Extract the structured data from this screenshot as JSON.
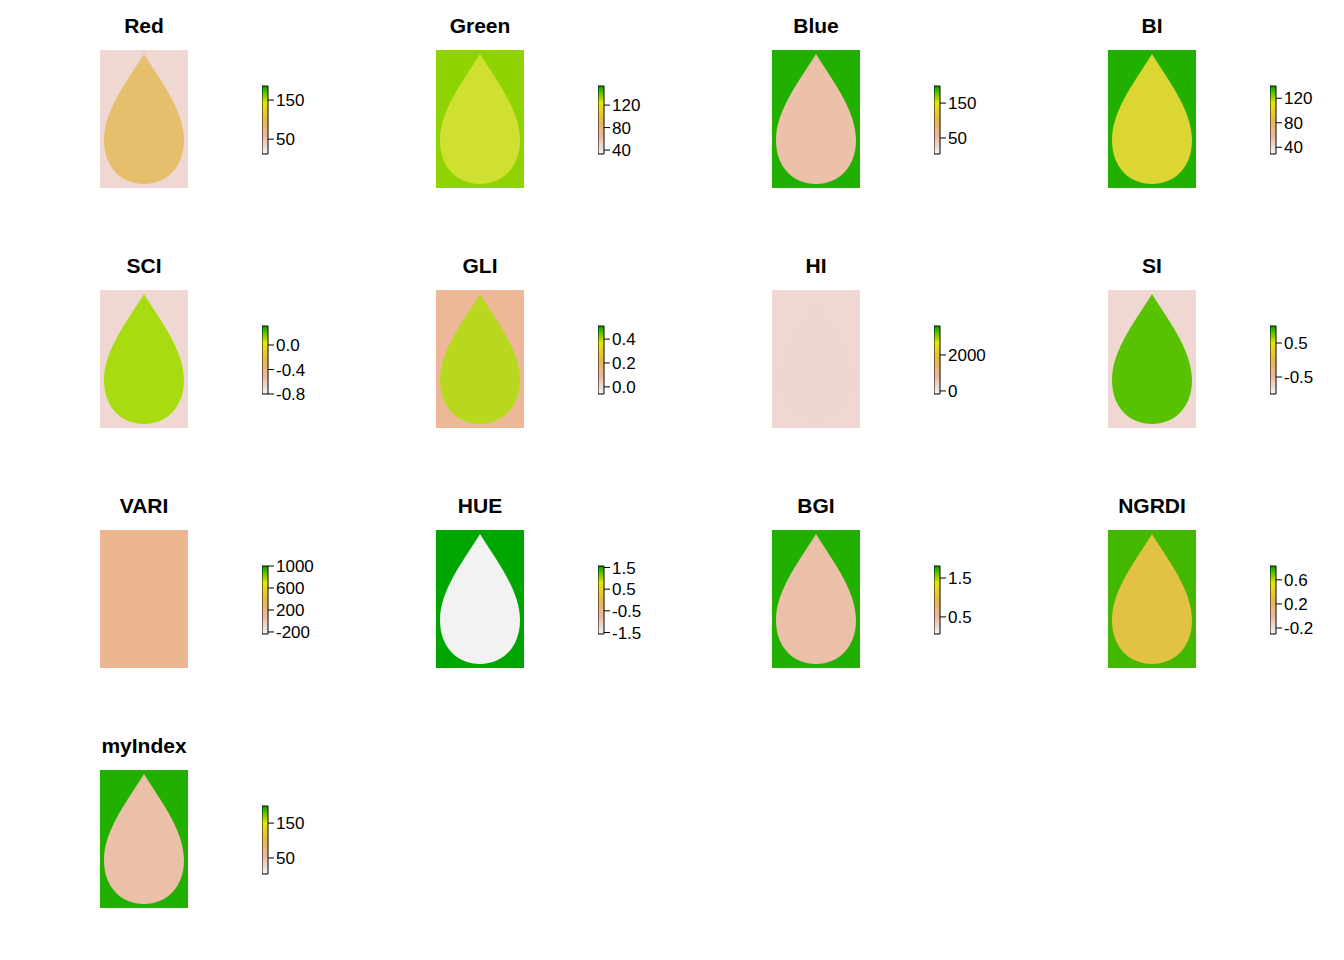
{
  "chart_data": [
    {
      "type": "raster",
      "title": "Red",
      "colors": [
        "#f0d8d2",
        "#e6bf6c"
      ],
      "colorbar": {
        "range": [
          12,
          186
        ],
        "ticks": [
          50,
          150
        ],
        "colors": [
          "#f2f2f2",
          "#eeb99f",
          "#eab64e",
          "#e6e600",
          "#00a600"
        ]
      }
    },
    {
      "type": "raster",
      "title": "Green",
      "colors": [
        "#8fd400",
        "#cfe030"
      ],
      "colorbar": {
        "range": [
          33,
          154
        ],
        "ticks": [
          40,
          80,
          120
        ],
        "colors": [
          "#f2f2f2",
          "#eeb99f",
          "#eab64e",
          "#e6e600",
          "#00a600"
        ]
      }
    },
    {
      "type": "raster",
      "title": "Blue",
      "colors": [
        "#22b000",
        "#edc0aa"
      ],
      "colorbar": {
        "range": [
          4,
          199
        ],
        "ticks": [
          50,
          150
        ],
        "colors": [
          "#f2f2f2",
          "#eeb99f",
          "#eab64e",
          "#e6e600",
          "#00a600"
        ]
      }
    },
    {
      "type": "raster",
      "title": "BI",
      "colors": [
        "#22b000",
        "#dcd632"
      ],
      "colorbar": {
        "range": [
          29,
          140
        ],
        "ticks": [
          40,
          80,
          120
        ],
        "colors": [
          "#f2f2f2",
          "#eeb99f",
          "#eab64e",
          "#e6e600",
          "#00a600"
        ]
      }
    },
    {
      "type": "raster",
      "title": "SCI",
      "colors": [
        "#f0d8d2",
        "#a8dc10"
      ],
      "colorbar": {
        "range": [
          -0.8,
          0.31
        ],
        "ticks": [
          {
            "value": 0,
            "label": "0.0"
          },
          -0.4,
          -0.8
        ],
        "colors": [
          "#f2f2f2",
          "#eeb99f",
          "#eab64e",
          "#e6e600",
          "#00a600"
        ]
      }
    },
    {
      "type": "raster",
      "title": "GLI",
      "colors": [
        "#ecb898",
        "#b8d820"
      ],
      "colorbar": {
        "range": [
          -0.06,
          0.51
        ],
        "ticks": [
          {
            "value": 0,
            "label": "0.0"
          },
          0.2,
          0.4
        ],
        "colors": [
          "#f2f2f2",
          "#eeb99f",
          "#eab64e",
          "#e6e600",
          "#00a600"
        ]
      }
    },
    {
      "type": "raster",
      "title": "HI",
      "colors": [
        "#f0d8d2",
        "#f0d6d0"
      ],
      "colorbar": {
        "range": [
          -170,
          3610
        ],
        "ticks": [
          0,
          2000
        ],
        "colors": [
          "#f2f2f2",
          "#eeb99f",
          "#eab64e",
          "#e6e600",
          "#00a600"
        ]
      }
    },
    {
      "type": "raster",
      "title": "SI",
      "colors": [
        "#f0d8d2",
        "#58c200"
      ],
      "colorbar": {
        "range": [
          -1,
          1
        ],
        "ticks": [
          -0.5,
          0.5
        ],
        "colors": [
          "#f2f2f2",
          "#eeb99f",
          "#eab64e",
          "#e6e600",
          "#00a600"
        ]
      }
    },
    {
      "type": "raster",
      "title": "VARI",
      "colors": [
        "#ecb690",
        "#ecb690"
      ],
      "colorbar": {
        "range": [
          -237,
          1000
        ],
        "ticks": [
          -200,
          200,
          600,
          1000
        ],
        "colors": [
          "#f2f2f2",
          "#eeb99f",
          "#eab64e",
          "#e6e600",
          "#00a600"
        ]
      }
    },
    {
      "type": "raster",
      "title": "HUE",
      "colors": [
        "#00a600",
        "#f2f2f2"
      ],
      "colorbar": {
        "range": [
          -1.57,
          1.57
        ],
        "ticks": [
          -1.5,
          -0.5,
          0.5,
          1.5
        ],
        "colors": [
          "#f2f2f2",
          "#eeb99f",
          "#eab64e",
          "#e6e600",
          "#00a600"
        ]
      }
    },
    {
      "type": "raster",
      "title": "BGI",
      "colors": [
        "#22b000",
        "#ecc0a8"
      ],
      "colorbar": {
        "range": [
          0.06,
          1.81
        ],
        "ticks": [
          0.5,
          1.5
        ],
        "colors": [
          "#f2f2f2",
          "#eeb99f",
          "#eab64e",
          "#e6e600",
          "#00a600"
        ]
      }
    },
    {
      "type": "raster",
      "title": "NGRDI",
      "colors": [
        "#44b800",
        "#e2c244"
      ],
      "colorbar": {
        "range": [
          -0.3,
          0.83
        ],
        "ticks": [
          -0.2,
          0.2,
          0.6
        ],
        "colors": [
          "#f2f2f2",
          "#eeb99f",
          "#eab64e",
          "#e6e600",
          "#00a600"
        ]
      }
    },
    {
      "type": "raster",
      "title": "myIndex",
      "colors": [
        "#22b000",
        "#ecc0a8"
      ],
      "colorbar": {
        "range": [
          4,
          199
        ],
        "ticks": [
          50,
          150
        ],
        "colors": [
          "#f2f2f2",
          "#eeb99f",
          "#eab64e",
          "#e6e600",
          "#00a600"
        ]
      }
    }
  ]
}
